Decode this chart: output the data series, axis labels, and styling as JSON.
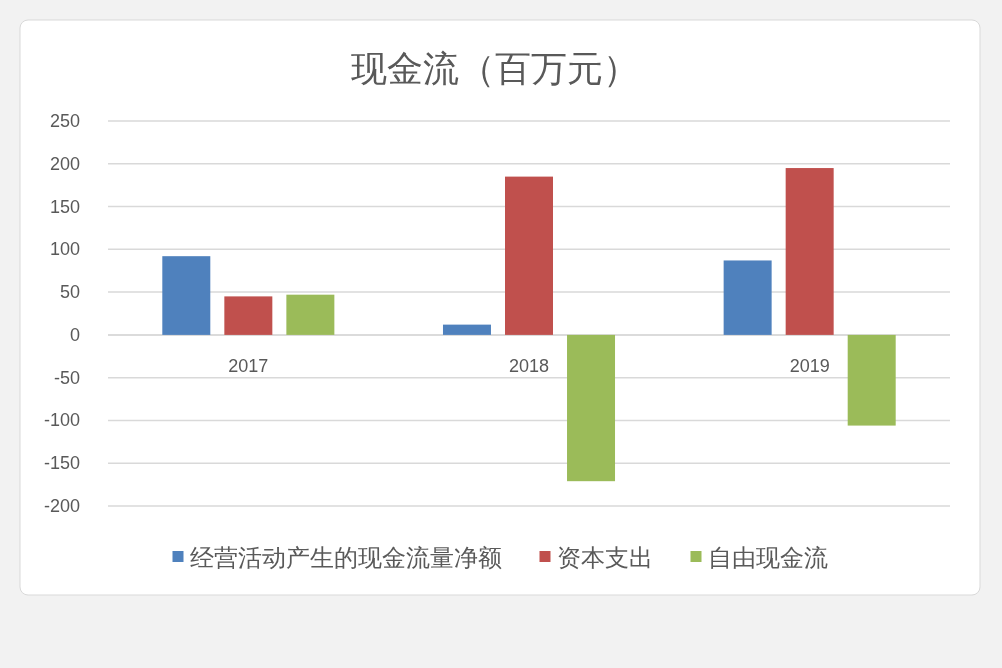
{
  "chart_data": {
    "type": "bar",
    "title": "现金流（百万元）",
    "categories": [
      "2017",
      "2018",
      "2019"
    ],
    "series": [
      {
        "name": "经营活动产生的现金流量净额",
        "color": "#4f81bd",
        "values": [
          92,
          12,
          87
        ]
      },
      {
        "name": "资本支出",
        "color": "#c0504d",
        "values": [
          45,
          185,
          195
        ]
      },
      {
        "name": "自由现金流",
        "color": "#9bbb59",
        "values": [
          47,
          -171,
          -106
        ]
      }
    ],
    "ylim": [
      -200,
      250
    ],
    "yticks": [
      -200,
      -150,
      -100,
      -50,
      0,
      50,
      100,
      150,
      200,
      250
    ],
    "grid": "y",
    "legend": "bottom"
  }
}
